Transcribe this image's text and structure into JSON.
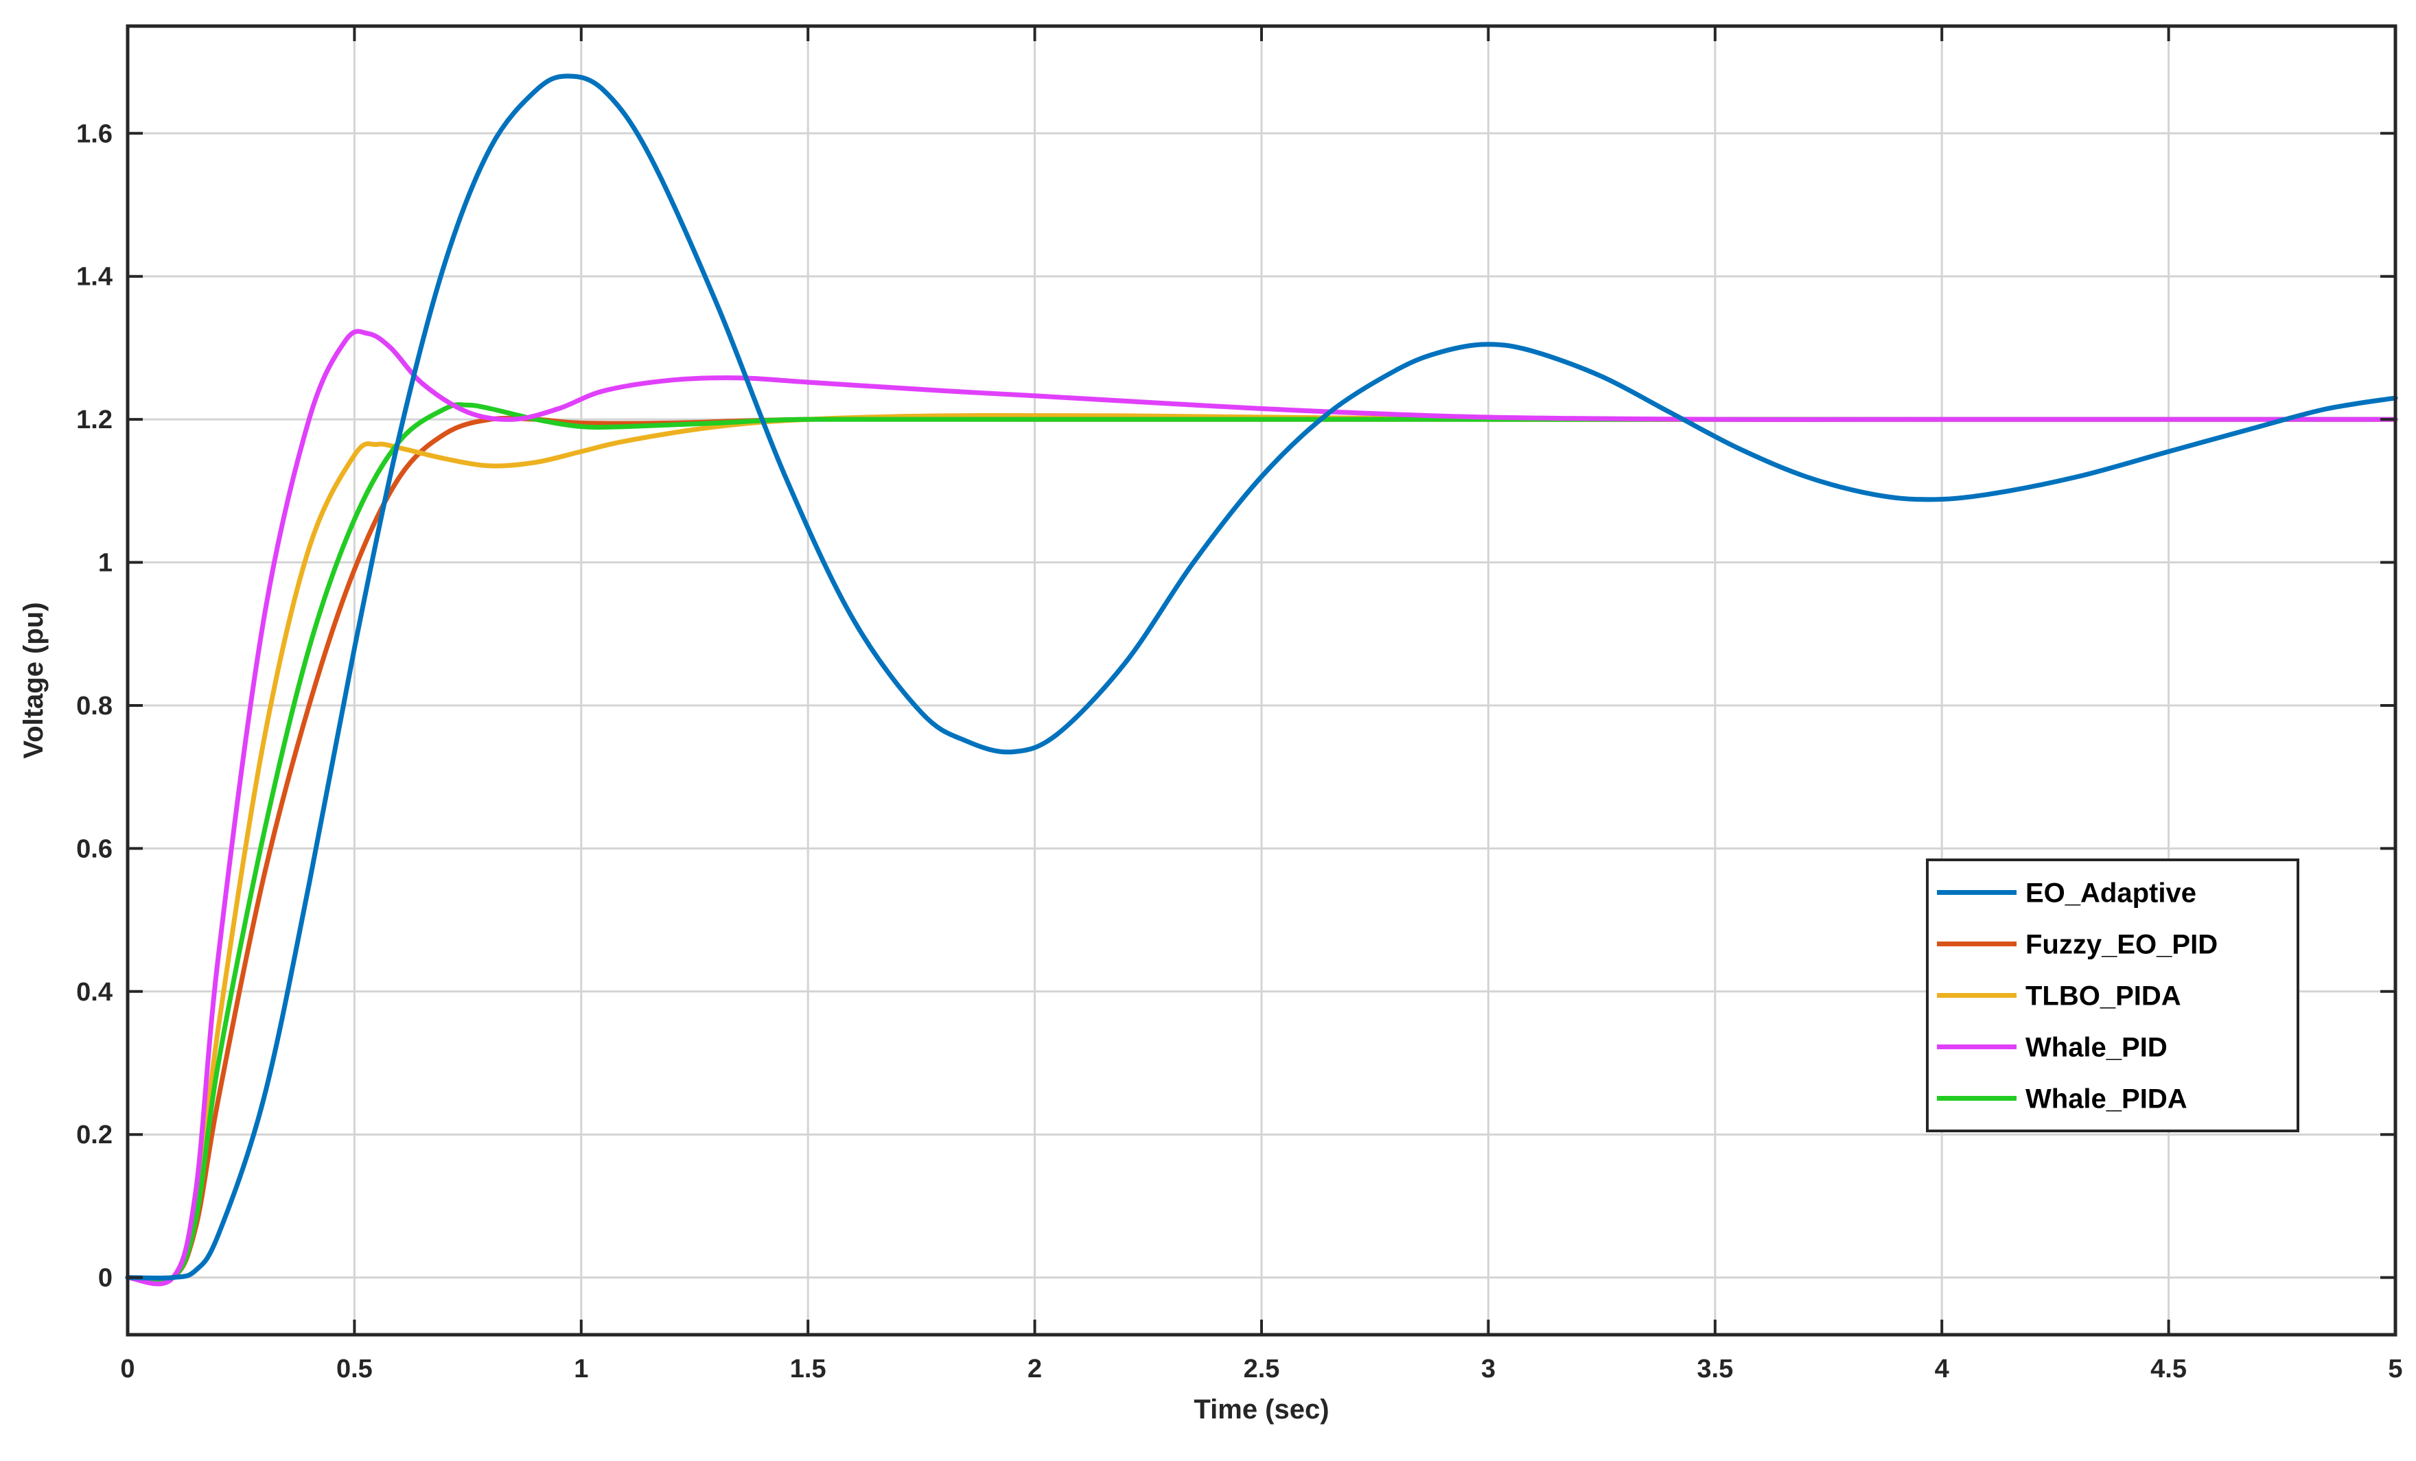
{
  "chart_data": {
    "type": "line",
    "title": "",
    "xlabel": "Time (sec)",
    "ylabel": "Voltage (pu)",
    "xlim": [
      0,
      5
    ],
    "ylim": [
      -0.08,
      1.75
    ],
    "xticks": [
      0,
      0.5,
      1,
      1.5,
      2,
      2.5,
      3,
      3.5,
      4,
      4.5,
      5
    ],
    "xtick_labels": [
      "0",
      "0.5",
      "1",
      "1.5",
      "2",
      "2.5",
      "3",
      "3.5",
      "4",
      "4.5",
      "5"
    ],
    "yticks": [
      0,
      0.2,
      0.4,
      0.6,
      0.8,
      1,
      1.2,
      1.4,
      1.6
    ],
    "ytick_labels": [
      "0",
      "0.2",
      "0.4",
      "0.6",
      "0.8",
      "1",
      "1.2",
      "1.4",
      "1.6"
    ],
    "grid": true,
    "legend_position": "bottom-right",
    "series": [
      {
        "name": "EO_Adaptive",
        "color": "#0072BD",
        "x": [
          0,
          0.1,
          0.15,
          0.2,
          0.3,
          0.4,
          0.5,
          0.6,
          0.7,
          0.8,
          0.9,
          0.97,
          1.05,
          1.15,
          1.3,
          1.45,
          1.6,
          1.75,
          1.85,
          1.95,
          2.05,
          2.2,
          2.35,
          2.5,
          2.65,
          2.8,
          2.9,
          3.0,
          3.1,
          3.25,
          3.4,
          3.55,
          3.7,
          3.85,
          3.97,
          4.1,
          4.3,
          4.5,
          4.7,
          4.85,
          5.0
        ],
        "y": [
          0,
          0,
          0.01,
          0.06,
          0.25,
          0.55,
          0.88,
          1.18,
          1.42,
          1.58,
          1.66,
          1.68,
          1.66,
          1.57,
          1.36,
          1.12,
          0.92,
          0.79,
          0.75,
          0.735,
          0.76,
          0.86,
          1.0,
          1.12,
          1.21,
          1.27,
          1.295,
          1.305,
          1.295,
          1.26,
          1.21,
          1.16,
          1.12,
          1.095,
          1.088,
          1.095,
          1.12,
          1.155,
          1.19,
          1.215,
          1.23
        ]
      },
      {
        "name": "Fuzzy_EO_PID",
        "color": "#D95319",
        "x": [
          0,
          0.1,
          0.15,
          0.2,
          0.3,
          0.4,
          0.5,
          0.6,
          0.7,
          0.8,
          0.9,
          1.0,
          1.2,
          1.5,
          2.0,
          3.0,
          4.0,
          5.0
        ],
        "y": [
          0,
          0,
          0.07,
          0.25,
          0.56,
          0.8,
          0.99,
          1.12,
          1.18,
          1.2,
          1.2,
          1.195,
          1.195,
          1.2,
          1.2,
          1.2,
          1.2,
          1.2
        ]
      },
      {
        "name": "TLBO_PIDA",
        "color": "#EDB120",
        "x": [
          0,
          0.1,
          0.15,
          0.2,
          0.3,
          0.4,
          0.5,
          0.55,
          0.6,
          0.7,
          0.8,
          0.9,
          1.0,
          1.1,
          1.3,
          1.5,
          1.8,
          2.2,
          3.0,
          4.0,
          5.0
        ],
        "y": [
          0,
          0,
          0.1,
          0.35,
          0.75,
          1.02,
          1.15,
          1.165,
          1.16,
          1.145,
          1.135,
          1.14,
          1.155,
          1.17,
          1.19,
          1.2,
          1.205,
          1.205,
          1.2,
          1.2,
          1.2
        ]
      },
      {
        "name": "Whale_PID",
        "color": "#E040FB",
        "x": [
          0,
          0.1,
          0.15,
          0.2,
          0.3,
          0.4,
          0.48,
          0.53,
          0.58,
          0.65,
          0.75,
          0.85,
          0.95,
          1.05,
          1.2,
          1.35,
          1.5,
          1.8,
          2.0,
          2.3,
          2.6,
          3.0,
          3.5,
          4.0,
          5.0
        ],
        "y": [
          0,
          0,
          0.12,
          0.45,
          0.92,
          1.2,
          1.31,
          1.32,
          1.3,
          1.25,
          1.21,
          1.2,
          1.215,
          1.24,
          1.255,
          1.258,
          1.252,
          1.24,
          1.233,
          1.222,
          1.212,
          1.203,
          1.2,
          1.2,
          1.2
        ]
      },
      {
        "name": "Whale_PIDA",
        "color": "#22CC22",
        "x": [
          0,
          0.1,
          0.15,
          0.2,
          0.3,
          0.4,
          0.5,
          0.6,
          0.7,
          0.75,
          0.8,
          0.9,
          1.0,
          1.1,
          1.3,
          1.5,
          2.0,
          3.0,
          4.0,
          5.0
        ],
        "y": [
          0,
          0,
          0.08,
          0.3,
          0.62,
          0.88,
          1.06,
          1.17,
          1.215,
          1.22,
          1.215,
          1.2,
          1.19,
          1.19,
          1.195,
          1.2,
          1.2,
          1.2,
          1.2,
          1.2
        ]
      }
    ]
  }
}
